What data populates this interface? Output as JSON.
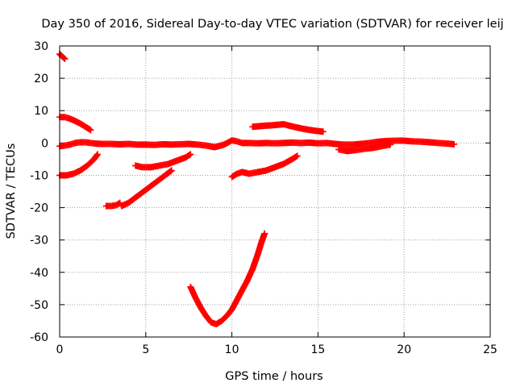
{
  "chart_data": {
    "type": "scatter",
    "title": "Day 350 of 2016, Sidereal Day-to-day VTEC variation (SDTVAR) for receiver leij",
    "xlabel": "GPS time / hours",
    "ylabel": "SDTVAR / TECUs",
    "xlim": [
      0,
      25
    ],
    "ylim": [
      -60,
      30
    ],
    "xticks": [
      0,
      5,
      10,
      15,
      20,
      25
    ],
    "yticks": [
      -60,
      -50,
      -40,
      -30,
      -20,
      -10,
      0,
      10,
      20,
      30
    ],
    "grid": true,
    "legend": "none",
    "marker": "+",
    "color": "#ff0000",
    "series": [
      {
        "points": [
          [
            0.0,
            27.5
          ],
          [
            0.2,
            26.5
          ],
          [
            0.3,
            26.0
          ]
        ]
      },
      {
        "points": [
          [
            0.0,
            8.0
          ],
          [
            0.3,
            8.0
          ],
          [
            0.6,
            7.5
          ],
          [
            0.9,
            6.8
          ],
          [
            1.2,
            6.0
          ],
          [
            1.5,
            5.0
          ],
          [
            1.8,
            4.0
          ]
        ]
      },
      {
        "points": [
          [
            0.0,
            -1.0
          ],
          [
            0.3,
            -0.8
          ],
          [
            0.6,
            -0.5
          ],
          [
            0.9,
            0.0
          ],
          [
            1.2,
            0.2
          ],
          [
            1.5,
            0.2
          ],
          [
            1.8,
            0.0
          ],
          [
            2.1,
            -0.2
          ],
          [
            2.5,
            -0.3
          ],
          [
            3.0,
            -0.3
          ],
          [
            3.5,
            -0.4
          ],
          [
            4.0,
            -0.3
          ],
          [
            4.5,
            -0.5
          ],
          [
            5.0,
            -0.5
          ],
          [
            5.5,
            -0.6
          ],
          [
            6.0,
            -0.4
          ],
          [
            6.5,
            -0.5
          ],
          [
            7.0,
            -0.4
          ],
          [
            7.5,
            -0.3
          ],
          [
            8.0,
            -0.5
          ],
          [
            8.5,
            -0.8
          ],
          [
            9.0,
            -1.3
          ],
          [
            9.5,
            -0.6
          ],
          [
            9.8,
            0.2
          ],
          [
            10.0,
            0.8
          ],
          [
            10.3,
            0.5
          ],
          [
            10.6,
            0.0
          ],
          [
            11.0,
            0.0
          ],
          [
            11.5,
            -0.1
          ],
          [
            12.0,
            0.0
          ],
          [
            12.5,
            -0.1
          ],
          [
            13.0,
            0.0
          ],
          [
            13.5,
            0.1
          ],
          [
            14.0,
            0.0
          ],
          [
            14.5,
            0.1
          ],
          [
            15.0,
            -0.1
          ],
          [
            15.5,
            0.0
          ],
          [
            16.0,
            -0.3
          ],
          [
            16.5,
            -0.5
          ],
          [
            17.0,
            -0.5
          ],
          [
            17.5,
            -0.3
          ],
          [
            18.0,
            0.0
          ],
          [
            18.5,
            0.4
          ],
          [
            19.0,
            0.6
          ],
          [
            19.5,
            0.7
          ],
          [
            20.0,
            0.7
          ],
          [
            20.5,
            0.5
          ],
          [
            21.0,
            0.4
          ],
          [
            21.5,
            0.2
          ],
          [
            22.0,
            0.0
          ],
          [
            22.5,
            -0.2
          ],
          [
            22.9,
            -0.4
          ]
        ]
      },
      {
        "points": [
          [
            16.2,
            -2.0
          ],
          [
            16.7,
            -2.5
          ],
          [
            17.2,
            -2.2
          ],
          [
            17.7,
            -1.8
          ],
          [
            18.2,
            -1.5
          ],
          [
            18.7,
            -1.0
          ],
          [
            19.2,
            -0.5
          ]
        ]
      },
      {
        "points": [
          [
            0.0,
            -10.0
          ],
          [
            0.4,
            -10.0
          ],
          [
            0.8,
            -9.5
          ],
          [
            1.2,
            -8.5
          ],
          [
            1.6,
            -7.0
          ],
          [
            2.0,
            -5.0
          ],
          [
            2.2,
            -3.5
          ]
        ]
      },
      {
        "points": [
          [
            2.7,
            -19.5
          ],
          [
            3.0,
            -19.5
          ],
          [
            3.3,
            -19.2
          ],
          [
            3.5,
            -18.5
          ]
        ]
      },
      {
        "points": [
          [
            3.6,
            -19.5
          ],
          [
            4.0,
            -18.5
          ],
          [
            4.5,
            -16.5
          ],
          [
            5.0,
            -14.5
          ],
          [
            5.5,
            -12.5
          ],
          [
            6.0,
            -10.5
          ],
          [
            6.5,
            -8.5
          ]
        ]
      },
      {
        "points": [
          [
            4.4,
            -7.0
          ],
          [
            4.8,
            -7.5
          ],
          [
            5.3,
            -7.5
          ],
          [
            5.8,
            -7.0
          ],
          [
            6.3,
            -6.5
          ],
          [
            6.8,
            -5.5
          ],
          [
            7.3,
            -4.5
          ],
          [
            7.6,
            -3.5
          ]
        ]
      },
      {
        "points": [
          [
            7.6,
            -44.5
          ],
          [
            7.9,
            -48.0
          ],
          [
            8.2,
            -51.0
          ],
          [
            8.5,
            -53.5
          ],
          [
            8.8,
            -55.5
          ],
          [
            9.1,
            -56.0
          ],
          [
            9.4,
            -55.0
          ],
          [
            9.7,
            -53.5
          ],
          [
            10.0,
            -51.5
          ],
          [
            10.3,
            -48.5
          ],
          [
            10.6,
            -45.5
          ],
          [
            10.9,
            -42.5
          ],
          [
            11.2,
            -39.0
          ],
          [
            11.5,
            -34.5
          ],
          [
            11.7,
            -31.0
          ],
          [
            11.9,
            -28.0
          ]
        ]
      },
      {
        "points": [
          [
            10.0,
            -10.5
          ],
          [
            10.3,
            -9.5
          ],
          [
            10.6,
            -9.0
          ],
          [
            11.0,
            -9.5
          ],
          [
            11.5,
            -9.0
          ],
          [
            12.0,
            -8.5
          ],
          [
            12.5,
            -7.5
          ],
          [
            13.0,
            -6.5
          ],
          [
            13.5,
            -5.0
          ],
          [
            13.8,
            -4.0
          ]
        ]
      },
      {
        "points": [
          [
            11.2,
            5.0
          ],
          [
            11.8,
            5.3
          ],
          [
            12.4,
            5.5
          ],
          [
            13.0,
            5.8
          ],
          [
            13.6,
            5.0
          ],
          [
            14.2,
            4.3
          ],
          [
            14.8,
            3.8
          ],
          [
            15.3,
            3.5
          ]
        ]
      }
    ]
  }
}
